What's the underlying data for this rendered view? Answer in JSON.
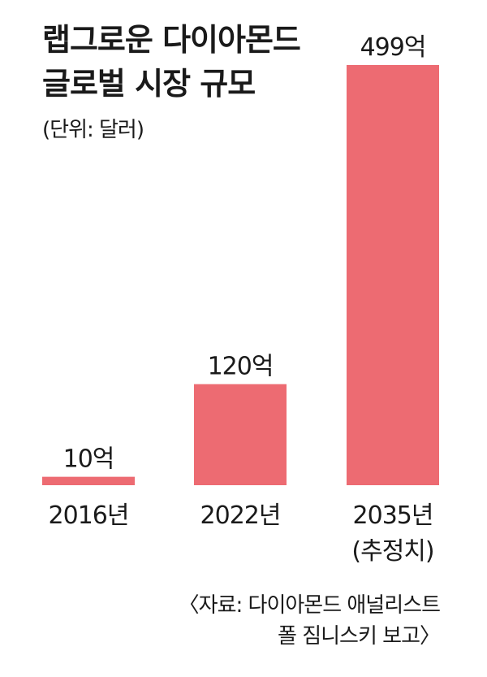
{
  "chart_data": {
    "type": "bar",
    "title_lines": [
      "랩그로운 다이아몬드",
      "글로벌 시장 규모"
    ],
    "unit": "(단위: 달러)",
    "categories": [
      [
        "2016년"
      ],
      [
        "2022년"
      ],
      [
        "2035년",
        "(추정치)"
      ]
    ],
    "values": [
      10,
      120,
      499
    ],
    "value_labels": [
      "10억",
      "120억",
      "499억"
    ],
    "value_unit": "억 달러",
    "ylim": [
      0,
      499
    ],
    "bar_color": "#ed6b72",
    "grid": false,
    "legend": "none"
  },
  "source_lines": [
    "〈자료: 다이아몬드 애널리스트",
    "폴 짐니스키 보고〉"
  ]
}
